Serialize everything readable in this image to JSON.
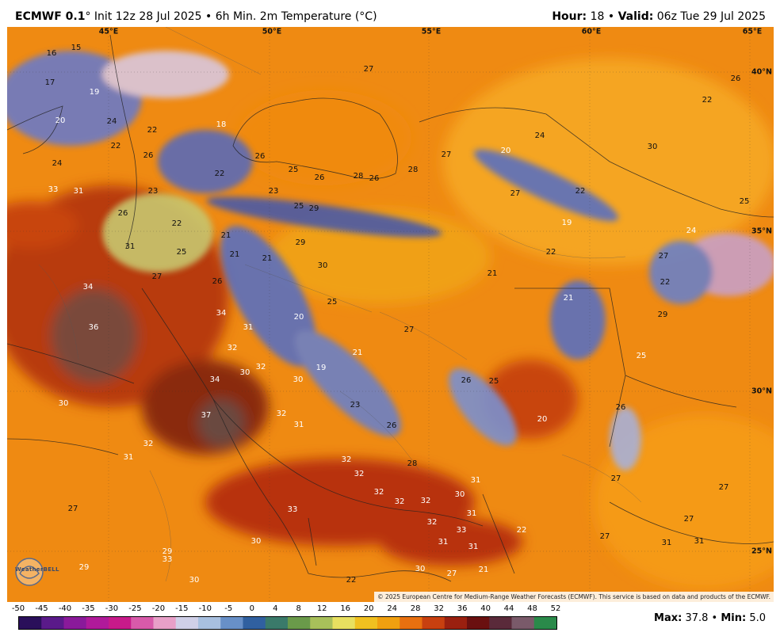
{
  "header": {
    "model": "ECMWF 0.1",
    "degree": "°",
    "init": " Init 12z 28 Jul 2025 • 6h Min. 2m Temperature (°C)",
    "hour_label": "Hour:",
    "hour_value": " 18 • ",
    "valid_label": "Valid:",
    "valid_value": " 06z Tue 29 Jul 2025"
  },
  "map": {
    "coordinates": [
      "45°E",
      "50°E",
      "55°E",
      "60°E",
      "65°E",
      "40°N",
      "35°N",
      "30°N",
      "25°N"
    ],
    "copyright": "© 2025 European Centre for Medium-Range Weather Forecasts (ECMWF). This service is based on data and products of the ECMWF.",
    "logo": "WeatherBELL",
    "labels": [
      "16",
      "15",
      "17",
      "19",
      "20",
      "18",
      "22",
      "22",
      "24",
      "22",
      "26",
      "24",
      "33",
      "31",
      "26",
      "23",
      "22",
      "21",
      "31",
      "25",
      "21",
      "27",
      "26",
      "21",
      "34",
      "36",
      "34",
      "31",
      "32",
      "30",
      "32",
      "34",
      "37",
      "30",
      "32",
      "31",
      "32",
      "31",
      "30",
      "27",
      "33",
      "30",
      "29",
      "29",
      "33",
      "30",
      "27",
      "26",
      "25",
      "26",
      "28",
      "26",
      "28",
      "23",
      "25",
      "29",
      "29",
      "30",
      "25",
      "20",
      "19",
      "21",
      "23",
      "26",
      "27",
      "27",
      "28",
      "32",
      "32",
      "32",
      "31",
      "30",
      "32",
      "32",
      "31",
      "32",
      "31",
      "33",
      "31",
      "27",
      "30",
      "22",
      "21",
      "22",
      "20",
      "26",
      "25",
      "22",
      "20",
      "24",
      "27",
      "19",
      "22",
      "21",
      "21",
      "25",
      "24",
      "27",
      "22",
      "26",
      "30",
      "22",
      "29",
      "25",
      "26",
      "27",
      "27",
      "27",
      "27",
      "31",
      "31"
    ]
  },
  "colorbar": {
    "ticks": [
      "-50",
      "-45",
      "-40",
      "-35",
      "-30",
      "-25",
      "-20",
      "-15",
      "-10",
      "-5",
      "0",
      "4",
      "8",
      "12",
      "16",
      "20",
      "24",
      "28",
      "32",
      "36",
      "40",
      "44",
      "48",
      "52"
    ],
    "colors": [
      "#2a0f5a",
      "#5a1a8a",
      "#8a1a9a",
      "#b01a9a",
      "#c81a8a",
      "#d85aaa",
      "#e8a0c8",
      "#d0d0e8",
      "#a8c0e0",
      "#6890c8",
      "#3060a0",
      "#3a7a6a",
      "#6a9a4a",
      "#a8c05a",
      "#e8e060",
      "#f0c020",
      "#f0a010",
      "#e87010",
      "#c84010",
      "#9a2010",
      "#6a1010",
      "#5a2a3a",
      "#7a5a6a",
      "#2a8a4a"
    ],
    "max_label": "Max:",
    "max_value": " 37.8 • ",
    "min_label": "Min:",
    "min_value": " 5.0"
  }
}
